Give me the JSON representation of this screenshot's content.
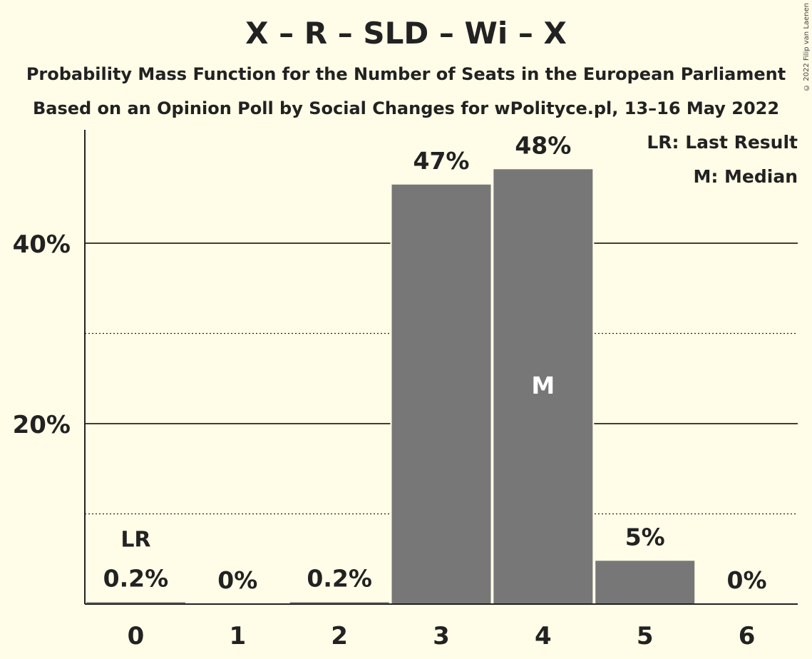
{
  "chart_data": {
    "type": "bar",
    "title": "X – R – SLD – Wi – X",
    "subtitle": "Probability Mass Function for the Number of Seats in the European Parliament",
    "subtitle2": "Based on an Opinion Poll by Social Changes for wPolityce.pl, 13–16 May 2022",
    "copyright": "© 2022 Filip van Laenen",
    "categories": [
      "0",
      "1",
      "2",
      "3",
      "4",
      "5",
      "6"
    ],
    "values": [
      0.2,
      0,
      0.2,
      46.5,
      48.2,
      4.8,
      0
    ],
    "value_labels": [
      "0.2%",
      "0%",
      "0.2%",
      "47%",
      "48%",
      "5%",
      "0%"
    ],
    "ylim": [
      0,
      52
    ],
    "yticks": [
      20,
      40
    ],
    "ytick_labels": [
      "20%",
      "40%"
    ],
    "dotted_gridlines": [
      10,
      30
    ],
    "last_result_index": 0,
    "last_result_label": "LR",
    "median_index": 4,
    "median_label": "M",
    "legend": [
      "LR: Last Result",
      "M: Median"
    ],
    "legend_position": "top-right",
    "bar_color": "#777777"
  }
}
